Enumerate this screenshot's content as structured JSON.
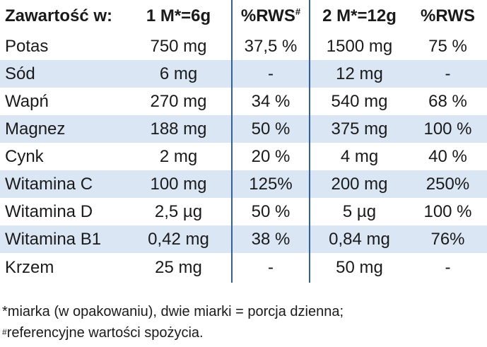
{
  "table": {
    "headers": [
      {
        "text": "Zawartość w:",
        "sup": ""
      },
      {
        "text": "1 M*=6g",
        "sup": ""
      },
      {
        "text": "%RWS",
        "sup": "#"
      },
      {
        "text": "2 M*=12g",
        "sup": ""
      },
      {
        "text": "%RWS",
        "sup": ""
      }
    ],
    "rows": [
      [
        "Potas",
        "750 mg",
        "37,5 %",
        "1500 mg",
        "75 %"
      ],
      [
        "Sód",
        "6 mg",
        "-",
        "12 mg",
        "-"
      ],
      [
        "Wapń",
        "270 mg",
        "34 %",
        "540 mg",
        "68 %"
      ],
      [
        "Magnez",
        "188 mg",
        "50 %",
        "375 mg",
        "100 %"
      ],
      [
        "Cynk",
        "2 mg",
        "20 %",
        "4 mg",
        "40 %"
      ],
      [
        "Witamina C",
        "100 mg",
        "125%",
        "200 mg",
        "250%"
      ],
      [
        "Witamina D",
        "2,5 µg",
        "50 %",
        "5 µg",
        "100 %"
      ],
      [
        "Witamina B1",
        "0,42 mg",
        "38 %",
        "0,84 mg",
        "76%"
      ],
      [
        "Krzem",
        "25 mg",
        "-",
        "50 mg",
        "-"
      ]
    ]
  },
  "footnotes": {
    "line1_mark": "*",
    "line1": "miarka (w opakowaniu), dwie miarki = porcja dzienna;",
    "line2_mark": "#",
    "line2": "referencyjne wartości spożycia."
  },
  "colors": {
    "row_shade": "#dbe6f4",
    "separator": "#2f5fa8",
    "text": "#1a1a1a"
  }
}
